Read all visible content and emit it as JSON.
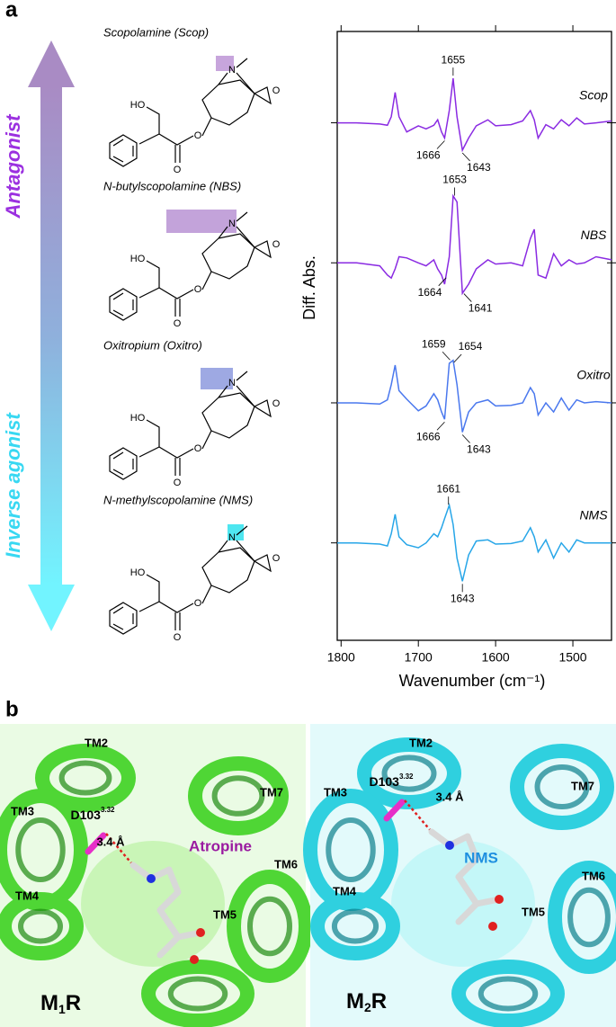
{
  "panel_a": {
    "label": "a",
    "arrow_top": "Antagonist",
    "arrow_bottom": "Inverse agonist",
    "compounds": [
      "Scopolamine (Scop)",
      "N-butylscopolamine (NBS)",
      "Oxitropium (Oxitro)",
      "N-methylscopolamine (NMS)"
    ],
    "structure_labels": {
      "hydroxyl": "HO",
      "ester_o": "O",
      "carbonyl_o": "O",
      "nitrogen": "N",
      "epoxide_o": "O"
    }
  },
  "chart_data": {
    "type": "line",
    "xlabel": "Wavenumber (cm⁻¹)",
    "ylabel": "Diff. Abs.",
    "xlim": [
      1805,
      1450
    ],
    "xticks": [
      1800,
      1700,
      1600,
      1500
    ],
    "ylim": [
      0,
      100
    ],
    "yticks": [
      85,
      62,
      39,
      16
    ],
    "ytick_labels": false,
    "x": [
      1805,
      1780,
      1750,
      1740,
      1735,
      1730,
      1725,
      1715,
      1700,
      1690,
      1680,
      1675,
      1670,
      1666,
      1660,
      1655,
      1650,
      1643,
      1635,
      1625,
      1610,
      1600,
      1580,
      1565,
      1555,
      1550,
      1545,
      1535,
      1525,
      1515,
      1505,
      1495,
      1485,
      1470,
      1450
    ],
    "series": [
      {
        "name": "Scop",
        "color": "#8a2be2",
        "peaks": [
          1655,
          1666,
          1643
        ],
        "values": [
          85,
          85,
          84.8,
          84.6,
          86,
          90,
          86,
          83.5,
          84.5,
          84,
          84.6,
          85.5,
          83.5,
          82.5,
          87,
          92.3,
          86,
          80.5,
          82.5,
          84.5,
          85.5,
          84.5,
          84.7,
          85.3,
          87,
          85.5,
          82.5,
          84.7,
          84,
          85.5,
          84.5,
          85.8,
          84.8,
          85,
          85.3
        ]
      },
      {
        "name": "NBS",
        "color": "#8a2be2",
        "peaks": [
          1653,
          1664,
          1641
        ],
        "values": [
          62,
          62,
          61.5,
          60,
          59.5,
          61,
          63,
          62.8,
          62,
          61.5,
          62.5,
          61,
          60,
          58.5,
          63,
          73,
          72,
          57,
          58.5,
          61,
          62.5,
          61.8,
          62,
          61.5,
          66,
          67.5,
          60,
          59.5,
          63.5,
          61.5,
          62.5,
          61.8,
          62,
          63,
          62.5
        ]
      },
      {
        "name": "Oxitro",
        "color": "#4a78ee",
        "peaks": [
          1659,
          1654,
          1666,
          1643
        ],
        "values": [
          39,
          39,
          38.8,
          39.5,
          42,
          45.2,
          41,
          39.6,
          37.7,
          38.5,
          40.5,
          39.5,
          37.5,
          36.3,
          45.5,
          46,
          42,
          34.2,
          37.5,
          39,
          39.5,
          38.5,
          38.6,
          39,
          41.5,
          40.5,
          37,
          39,
          37.5,
          39.8,
          37.8,
          39.5,
          39,
          39.2,
          39
        ]
      },
      {
        "name": "NMS",
        "color": "#27a6e8",
        "peaks": [
          1661,
          1643
        ],
        "values": [
          16,
          16,
          15.8,
          15.5,
          17.5,
          20.7,
          17,
          15.7,
          15.2,
          16,
          17.5,
          17,
          18.5,
          20,
          22.2,
          19,
          13.5,
          9.7,
          14,
          16.3,
          16.5,
          15.8,
          15.9,
          16.3,
          18.5,
          17,
          14.5,
          16.5,
          13.5,
          16,
          14.5,
          16.5,
          16,
          16,
          16
        ]
      }
    ]
  },
  "panel_b": {
    "label": "b",
    "views": [
      {
        "receptor": {
          "main": "M",
          "sub": "1",
          "end": "R"
        },
        "ligand": "Atropine",
        "residue": {
          "name": "D103",
          "sup": "3.32"
        },
        "distance": "3.4 Å",
        "helices": [
          "TM2",
          "TM3",
          "TM7",
          "TM4",
          "TM6",
          "TM5"
        ]
      },
      {
        "receptor": {
          "main": "M",
          "sub": "2",
          "end": "R"
        },
        "ligand": "NMS",
        "residue": {
          "name": "D103",
          "sup": "3.32"
        },
        "distance": "3.4 Å",
        "helices": [
          "TM2",
          "TM3",
          "TM7",
          "TM4",
          "TM6",
          "TM5"
        ]
      }
    ]
  }
}
